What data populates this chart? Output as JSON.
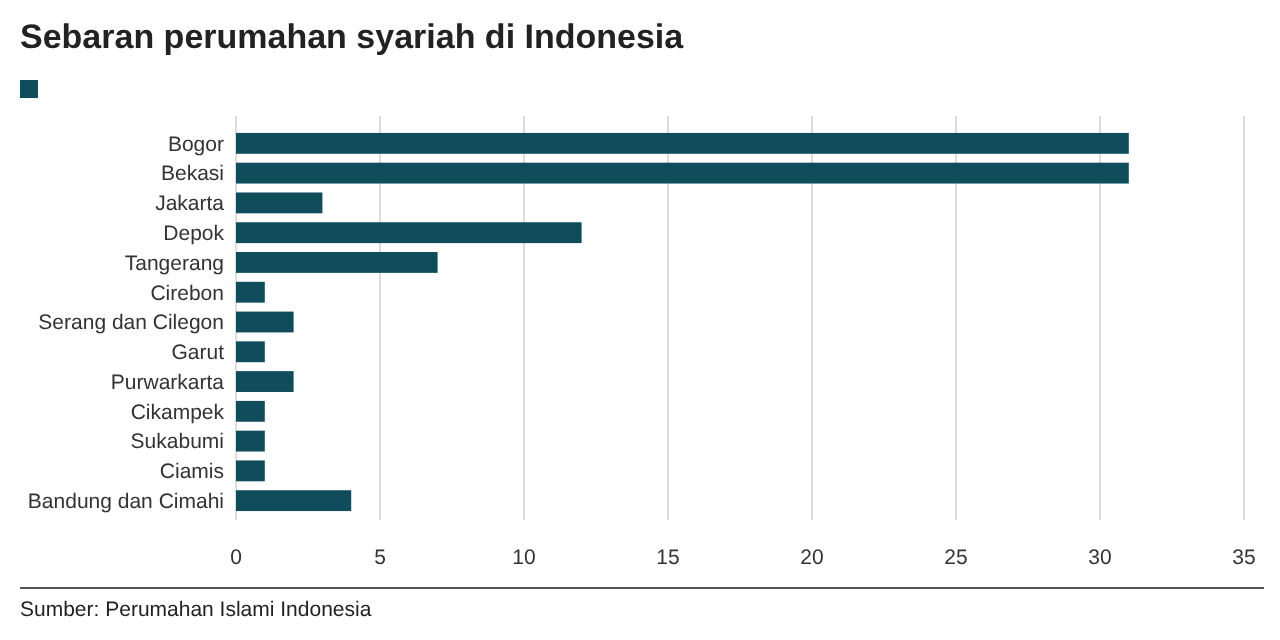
{
  "chart_data": {
    "type": "bar",
    "title": "Sebaran perumahan syariah di Indonesia",
    "orientation": "horizontal",
    "categories": [
      "Bogor",
      "Bekasi",
      "Jakarta",
      "Depok",
      "Tangerang",
      "Cirebon",
      "Serang dan Cilegon",
      "Garut",
      "Purwarkarta",
      "Cikampek",
      "Sukabumi",
      "Ciamis",
      "Bandung dan Cimahi"
    ],
    "series": [
      {
        "color": "#0f4c5c",
        "values": [
          31,
          31,
          3,
          12,
          7,
          1,
          2,
          1,
          2,
          1,
          1,
          1,
          4
        ]
      }
    ],
    "xlim": [
      0,
      35
    ],
    "xticks": [
      0,
      5,
      10,
      15,
      20,
      25,
      30,
      35
    ],
    "grid": "x",
    "annotations": [
      "Sumber: Perumahan Islami Indonesia"
    ]
  }
}
